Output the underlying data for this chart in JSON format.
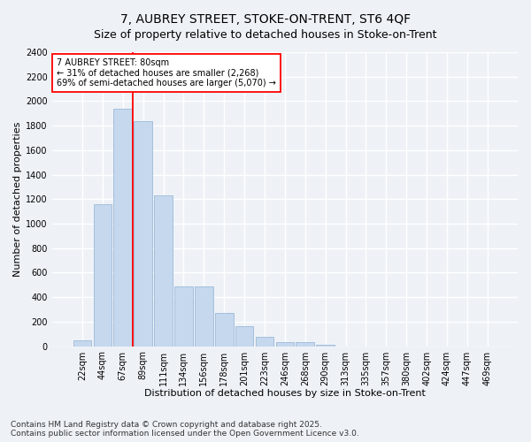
{
  "title": "7, AUBREY STREET, STOKE-ON-TRENT, ST6 4QF",
  "subtitle": "Size of property relative to detached houses in Stoke-on-Trent",
  "xlabel": "Distribution of detached houses by size in Stoke-on-Trent",
  "ylabel": "Number of detached properties",
  "categories": [
    "22sqm",
    "44sqm",
    "67sqm",
    "89sqm",
    "111sqm",
    "134sqm",
    "156sqm",
    "178sqm",
    "201sqm",
    "223sqm",
    "246sqm",
    "268sqm",
    "290sqm",
    "313sqm",
    "335sqm",
    "357sqm",
    "380sqm",
    "402sqm",
    "424sqm",
    "447sqm",
    "469sqm"
  ],
  "values": [
    50,
    1160,
    1940,
    1840,
    1230,
    490,
    490,
    270,
    160,
    80,
    30,
    30,
    10,
    0,
    0,
    0,
    0,
    0,
    0,
    0,
    0
  ],
  "bar_color": "#c5d8ed",
  "bar_edge_color": "#9dbad9",
  "annotation_text": "7 AUBREY STREET: 80sqm\n← 31% of detached houses are smaller (2,268)\n69% of semi-detached houses are larger (5,070) →",
  "annotation_box_color": "white",
  "annotation_box_edge_color": "red",
  "vline_x": 2.5,
  "ylim": [
    0,
    2400
  ],
  "yticks": [
    0,
    200,
    400,
    600,
    800,
    1000,
    1200,
    1400,
    1600,
    1800,
    2000,
    2200,
    2400
  ],
  "background_color": "#eef2f7",
  "grid_color": "white",
  "footer": "Contains HM Land Registry data © Crown copyright and database right 2025.\nContains public sector information licensed under the Open Government Licence v3.0.",
  "title_fontsize": 10,
  "xlabel_fontsize": 8,
  "ylabel_fontsize": 8,
  "tick_fontsize": 7,
  "footer_fontsize": 6.5
}
